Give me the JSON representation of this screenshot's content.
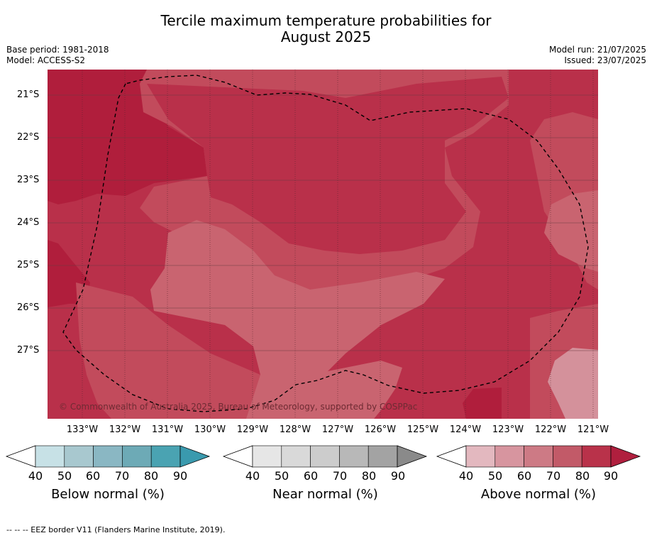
{
  "title_line1": "Tercile maximum temperature probabilities for",
  "title_line2": "August 2025",
  "meta_left": [
    "Base period: 1981-2018",
    "Model: ACCESS-S2"
  ],
  "meta_right": [
    "Model run: 21/07/2025",
    "Issued: 23/07/2025"
  ],
  "copyright": "© Commonwealth of Australia 2025, Bureau of Meteorology, supported by COSPPac",
  "footnote": "--  --  -- EEZ border V11 (Flanders Marine Institute, 2019).",
  "lat_ticks": [
    "21°S",
    "22°S",
    "23°S",
    "24°S",
    "25°S",
    "26°S",
    "27°S"
  ],
  "lon_ticks": [
    "133°W",
    "132°W",
    "131°W",
    "130°W",
    "129°W",
    "128°W",
    "127°W",
    "126°W",
    "125°W",
    "124°W",
    "123°W",
    "122°W",
    "121°W"
  ],
  "colorbars": [
    {
      "label": "Below normal (%)",
      "ticks": [
        "40",
        "50",
        "60",
        "70",
        "80",
        "90"
      ],
      "colors": [
        "#c7e1e6",
        "#a8c8cf",
        "#8ab7c3",
        "#6daab6",
        "#4aa3b2"
      ],
      "extend_color": "#3a9aae"
    },
    {
      "label": "Near normal (%)",
      "ticks": [
        "40",
        "50",
        "60",
        "70",
        "80",
        "90"
      ],
      "colors": [
        "#e6e6e6",
        "#d9d9d9",
        "#cccccc",
        "#b8b8b8",
        "#a3a3a3"
      ],
      "extend_color": "#8a8a8a"
    },
    {
      "label": "Above normal (%)",
      "ticks": [
        "40",
        "50",
        "60",
        "70",
        "80",
        "90"
      ],
      "colors": [
        "#e3b8bf",
        "#d7959f",
        "#cd7a85",
        "#c25a68",
        "#b9324a"
      ],
      "extend_color": "#b01f3e"
    }
  ],
  "map_colors": {
    "c90": "#b01e3c",
    "c80": "#b9304a",
    "c70": "#c24b5c",
    "c60": "#c96470",
    "c50": "#d4919b"
  }
}
